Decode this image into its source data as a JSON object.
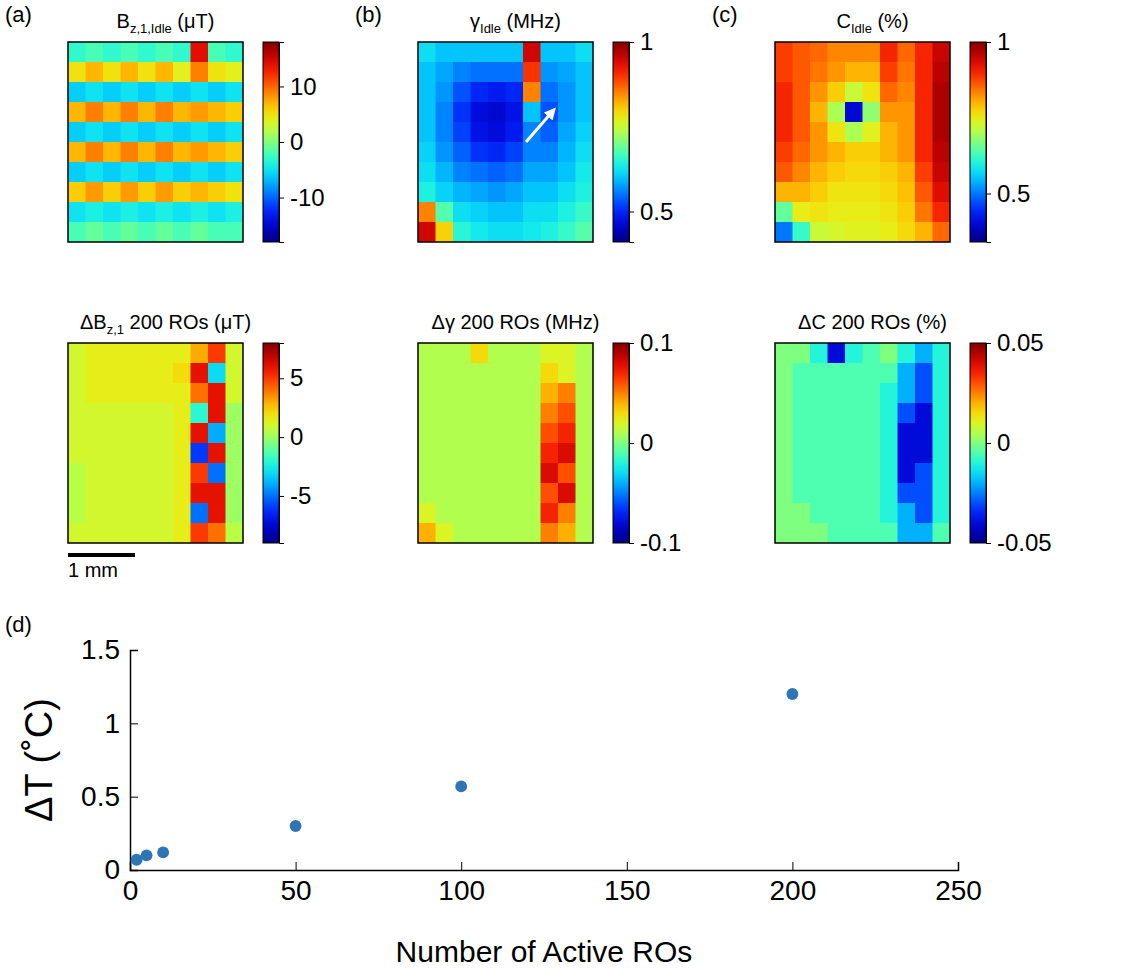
{
  "chart_data": [
    {
      "type": "heatmap",
      "panel_label": "(a)",
      "title": {
        "text": "B",
        "sub": "z,1,Idle",
        "suffix": " (μT)"
      },
      "colorbar": {
        "range": [
          -18,
          18
        ],
        "ticks": [
          -10,
          0,
          10
        ]
      },
      "cells": [
        [
          -3,
          -2,
          -3,
          -2,
          -3,
          -2,
          -3,
          14,
          -2,
          -3
        ],
        [
          5,
          7,
          5,
          7,
          5,
          7,
          4,
          9,
          5,
          4
        ],
        [
          -6,
          -5,
          -6,
          -5,
          -6,
          -5,
          -6,
          -5,
          -6,
          -5
        ],
        [
          7,
          9,
          7,
          9,
          7,
          9,
          7,
          8,
          7,
          6
        ],
        [
          -6,
          -5,
          -6,
          -5,
          -6,
          -5,
          -6,
          -5,
          -6,
          -5
        ],
        [
          7,
          9,
          7,
          9,
          7,
          9,
          7,
          8,
          7,
          6
        ],
        [
          -6,
          -5,
          -6,
          -5,
          -6,
          -5,
          -6,
          -5,
          -6,
          -5
        ],
        [
          6,
          8,
          6,
          8,
          6,
          8,
          6,
          7,
          6,
          5
        ],
        [
          -5,
          -4,
          -5,
          -4,
          -5,
          -4,
          -5,
          -4,
          -5,
          -4
        ],
        [
          -2,
          -1,
          -2,
          -1,
          -2,
          -1,
          -2,
          -1,
          -2,
          -2
        ]
      ]
    },
    {
      "type": "heatmap",
      "panel_label": "(b)",
      "title": {
        "text": "γ",
        "sub": "Idle",
        "suffix": " (MHz)"
      },
      "colorbar": {
        "range": [
          0.41,
          1
        ],
        "ticks": [
          0.5,
          1
        ]
      },
      "cells": [
        [
          0.62,
          0.6,
          0.6,
          0.6,
          0.6,
          0.6,
          0.95,
          0.6,
          0.6,
          0.62
        ],
        [
          0.6,
          0.58,
          0.56,
          0.55,
          0.55,
          0.55,
          0.9,
          0.57,
          0.58,
          0.6
        ],
        [
          0.6,
          0.57,
          0.53,
          0.5,
          0.49,
          0.5,
          0.85,
          0.55,
          0.57,
          0.6
        ],
        [
          0.6,
          0.56,
          0.51,
          0.47,
          0.46,
          0.48,
          0.6,
          0.53,
          0.57,
          0.6
        ],
        [
          0.6,
          0.56,
          0.52,
          0.48,
          0.47,
          0.49,
          0.56,
          0.54,
          0.58,
          0.61
        ],
        [
          0.61,
          0.57,
          0.54,
          0.51,
          0.5,
          0.52,
          0.56,
          0.56,
          0.59,
          0.62
        ],
        [
          0.62,
          0.59,
          0.56,
          0.55,
          0.54,
          0.55,
          0.58,
          0.58,
          0.6,
          0.63
        ],
        [
          0.64,
          0.61,
          0.59,
          0.58,
          0.57,
          0.58,
          0.6,
          0.6,
          0.62,
          0.64
        ],
        [
          0.85,
          0.68,
          0.62,
          0.61,
          0.6,
          0.6,
          0.62,
          0.62,
          0.64,
          0.66
        ],
        [
          0.95,
          0.8,
          0.65,
          0.63,
          0.62,
          0.62,
          0.63,
          0.64,
          0.66,
          0.68
        ]
      ]
    },
    {
      "type": "heatmap",
      "panel_label": "(c)",
      "title": {
        "text": "C",
        "sub": "Idle",
        "suffix": " (%)"
      },
      "colorbar": {
        "range": [
          0.34,
          1
        ],
        "ticks": [
          0.5,
          1
        ]
      },
      "cells": [
        [
          0.88,
          0.86,
          0.85,
          0.83,
          0.83,
          0.83,
          0.9,
          0.85,
          0.9,
          0.95
        ],
        [
          0.88,
          0.86,
          0.84,
          0.82,
          0.8,
          0.8,
          0.88,
          0.84,
          0.9,
          0.96
        ],
        [
          0.9,
          0.86,
          0.82,
          0.78,
          0.72,
          0.76,
          0.85,
          0.83,
          0.9,
          0.97
        ],
        [
          0.9,
          0.86,
          0.8,
          0.7,
          0.4,
          0.68,
          0.82,
          0.82,
          0.9,
          0.97
        ],
        [
          0.9,
          0.86,
          0.82,
          0.76,
          0.7,
          0.74,
          0.8,
          0.82,
          0.9,
          0.97
        ],
        [
          0.88,
          0.85,
          0.82,
          0.8,
          0.78,
          0.78,
          0.8,
          0.82,
          0.9,
          0.96
        ],
        [
          0.86,
          0.83,
          0.8,
          0.78,
          0.77,
          0.77,
          0.78,
          0.8,
          0.88,
          0.95
        ],
        [
          0.8,
          0.8,
          0.78,
          0.76,
          0.76,
          0.76,
          0.77,
          0.79,
          0.86,
          0.93
        ],
        [
          0.65,
          0.75,
          0.76,
          0.75,
          0.75,
          0.75,
          0.76,
          0.78,
          0.84,
          0.9
        ],
        [
          0.5,
          0.62,
          0.72,
          0.73,
          0.74,
          0.74,
          0.75,
          0.77,
          0.8,
          0.85
        ]
      ]
    },
    {
      "type": "heatmap",
      "title": {
        "text": "ΔB",
        "sub": "z,1",
        "suffix": " 200 ROs (μT)"
      },
      "scale_bar_label": "1 mm",
      "colorbar": {
        "range": [
          -9,
          8
        ],
        "ticks": [
          -5,
          0,
          5
        ]
      },
      "cells": [
        [
          1,
          1.5,
          1.5,
          1.5,
          1.5,
          1.5,
          1.5,
          3,
          5,
          1
        ],
        [
          1,
          1.5,
          1.5,
          1.5,
          1.5,
          1.5,
          2,
          6,
          -3,
          1
        ],
        [
          1,
          1.5,
          1.5,
          1.5,
          1.5,
          1.5,
          1.5,
          4,
          6,
          1
        ],
        [
          1,
          1,
          1,
          1,
          1,
          1,
          1.5,
          -2,
          6,
          0
        ],
        [
          1,
          1,
          1,
          1,
          1,
          1,
          1.5,
          6,
          -4,
          0
        ],
        [
          1,
          1,
          1,
          1,
          1,
          1,
          1.5,
          -6,
          6,
          0
        ],
        [
          0.5,
          1,
          1,
          1,
          1,
          1,
          1.5,
          5,
          -5,
          0
        ],
        [
          0.5,
          1,
          1,
          1,
          1,
          1,
          1.5,
          6,
          6,
          0
        ],
        [
          0.5,
          1,
          1,
          1,
          1,
          1,
          1.5,
          -5,
          6,
          0
        ],
        [
          1,
          1,
          1,
          1,
          1,
          1,
          1.5,
          5,
          4,
          0.5
        ]
      ]
    },
    {
      "type": "heatmap",
      "title": {
        "text": "Δγ 200 ROs (MHz)"
      },
      "colorbar": {
        "range": [
          -0.1,
          0.1
        ],
        "ticks": [
          -0.1,
          0,
          0.1
        ]
      },
      "cells": [
        [
          0.01,
          0.01,
          0.01,
          0.03,
          0.01,
          0.01,
          0.01,
          0.02,
          0.02,
          0.01
        ],
        [
          0.01,
          0.01,
          0.01,
          0.01,
          0.01,
          0.01,
          0.01,
          0.03,
          0.02,
          0.01
        ],
        [
          0.01,
          0.01,
          0.01,
          0.01,
          0.01,
          0.01,
          0.01,
          0.04,
          0.05,
          0.01
        ],
        [
          0.01,
          0.01,
          0.01,
          0.01,
          0.01,
          0.01,
          0.01,
          0.05,
          0.06,
          0.01
        ],
        [
          0.01,
          0.01,
          0.01,
          0.01,
          0.01,
          0.01,
          0.01,
          0.06,
          0.07,
          0.01
        ],
        [
          0.01,
          0.01,
          0.01,
          0.01,
          0.01,
          0.01,
          0.01,
          0.07,
          0.08,
          0.01
        ],
        [
          0.01,
          0.01,
          0.01,
          0.01,
          0.01,
          0.01,
          0.01,
          0.08,
          0.06,
          0.01
        ],
        [
          0.01,
          0.01,
          0.01,
          0.01,
          0.01,
          0.01,
          0.01,
          0.06,
          0.08,
          0.01
        ],
        [
          0.02,
          0.01,
          0.01,
          0.01,
          0.01,
          0.01,
          0.01,
          0.07,
          0.05,
          0.01
        ],
        [
          0.04,
          0.02,
          0.01,
          0.01,
          0.01,
          0.01,
          0.01,
          0.05,
          0.04,
          0.01
        ]
      ]
    },
    {
      "type": "heatmap",
      "title": {
        "text": "ΔC 200 ROs (%)"
      },
      "colorbar": {
        "range": [
          -0.05,
          0.05
        ],
        "ticks": [
          -0.05,
          0,
          0.05
        ]
      },
      "cells": [
        [
          0,
          0,
          -0.01,
          -0.04,
          -0.01,
          -0.005,
          0,
          -0.01,
          -0.02,
          -0.01
        ],
        [
          0,
          -0.005,
          -0.005,
          -0.005,
          -0.005,
          -0.005,
          -0.005,
          -0.02,
          -0.03,
          -0.01
        ],
        [
          0,
          -0.005,
          -0.005,
          -0.005,
          -0.005,
          -0.005,
          -0.01,
          -0.02,
          -0.03,
          -0.01
        ],
        [
          0,
          -0.005,
          -0.005,
          -0.005,
          -0.005,
          -0.005,
          -0.01,
          -0.03,
          -0.04,
          -0.01
        ],
        [
          0,
          -0.005,
          -0.005,
          -0.005,
          -0.005,
          -0.005,
          -0.01,
          -0.04,
          -0.04,
          -0.01
        ],
        [
          0,
          -0.005,
          -0.005,
          -0.005,
          -0.005,
          -0.005,
          -0.01,
          -0.04,
          -0.04,
          -0.01
        ],
        [
          0,
          -0.005,
          -0.005,
          -0.005,
          -0.005,
          -0.005,
          -0.01,
          -0.04,
          -0.03,
          -0.01
        ],
        [
          0,
          -0.005,
          -0.005,
          -0.005,
          -0.005,
          -0.005,
          -0.01,
          -0.03,
          -0.03,
          -0.01
        ],
        [
          0,
          0,
          -0.005,
          -0.005,
          -0.005,
          -0.005,
          -0.01,
          -0.02,
          -0.03,
          -0.01
        ],
        [
          0,
          0,
          0,
          -0.005,
          -0.005,
          -0.005,
          -0.005,
          -0.02,
          -0.02,
          -0.005
        ]
      ]
    },
    {
      "type": "scatter",
      "panel_label": "(d)",
      "x_label": "Number of Active ROs",
      "y_label": "ΔT (˚C)",
      "x": [
        2,
        5,
        10,
        50,
        100,
        200
      ],
      "values": [
        0.07,
        0.1,
        0.12,
        0.3,
        0.57,
        1.2
      ],
      "errors": [
        0.02,
        0.02,
        0.02,
        0.02,
        0.02,
        0.02
      ],
      "xlim": [
        0,
        250
      ],
      "xticks": [
        0,
        50,
        100,
        150,
        200,
        250
      ],
      "ylim": [
        0,
        1.5
      ],
      "yticks": [
        0,
        0.5,
        1,
        1.5
      ],
      "color": "#2e75b6",
      "marker": "circle",
      "grid": false
    }
  ]
}
